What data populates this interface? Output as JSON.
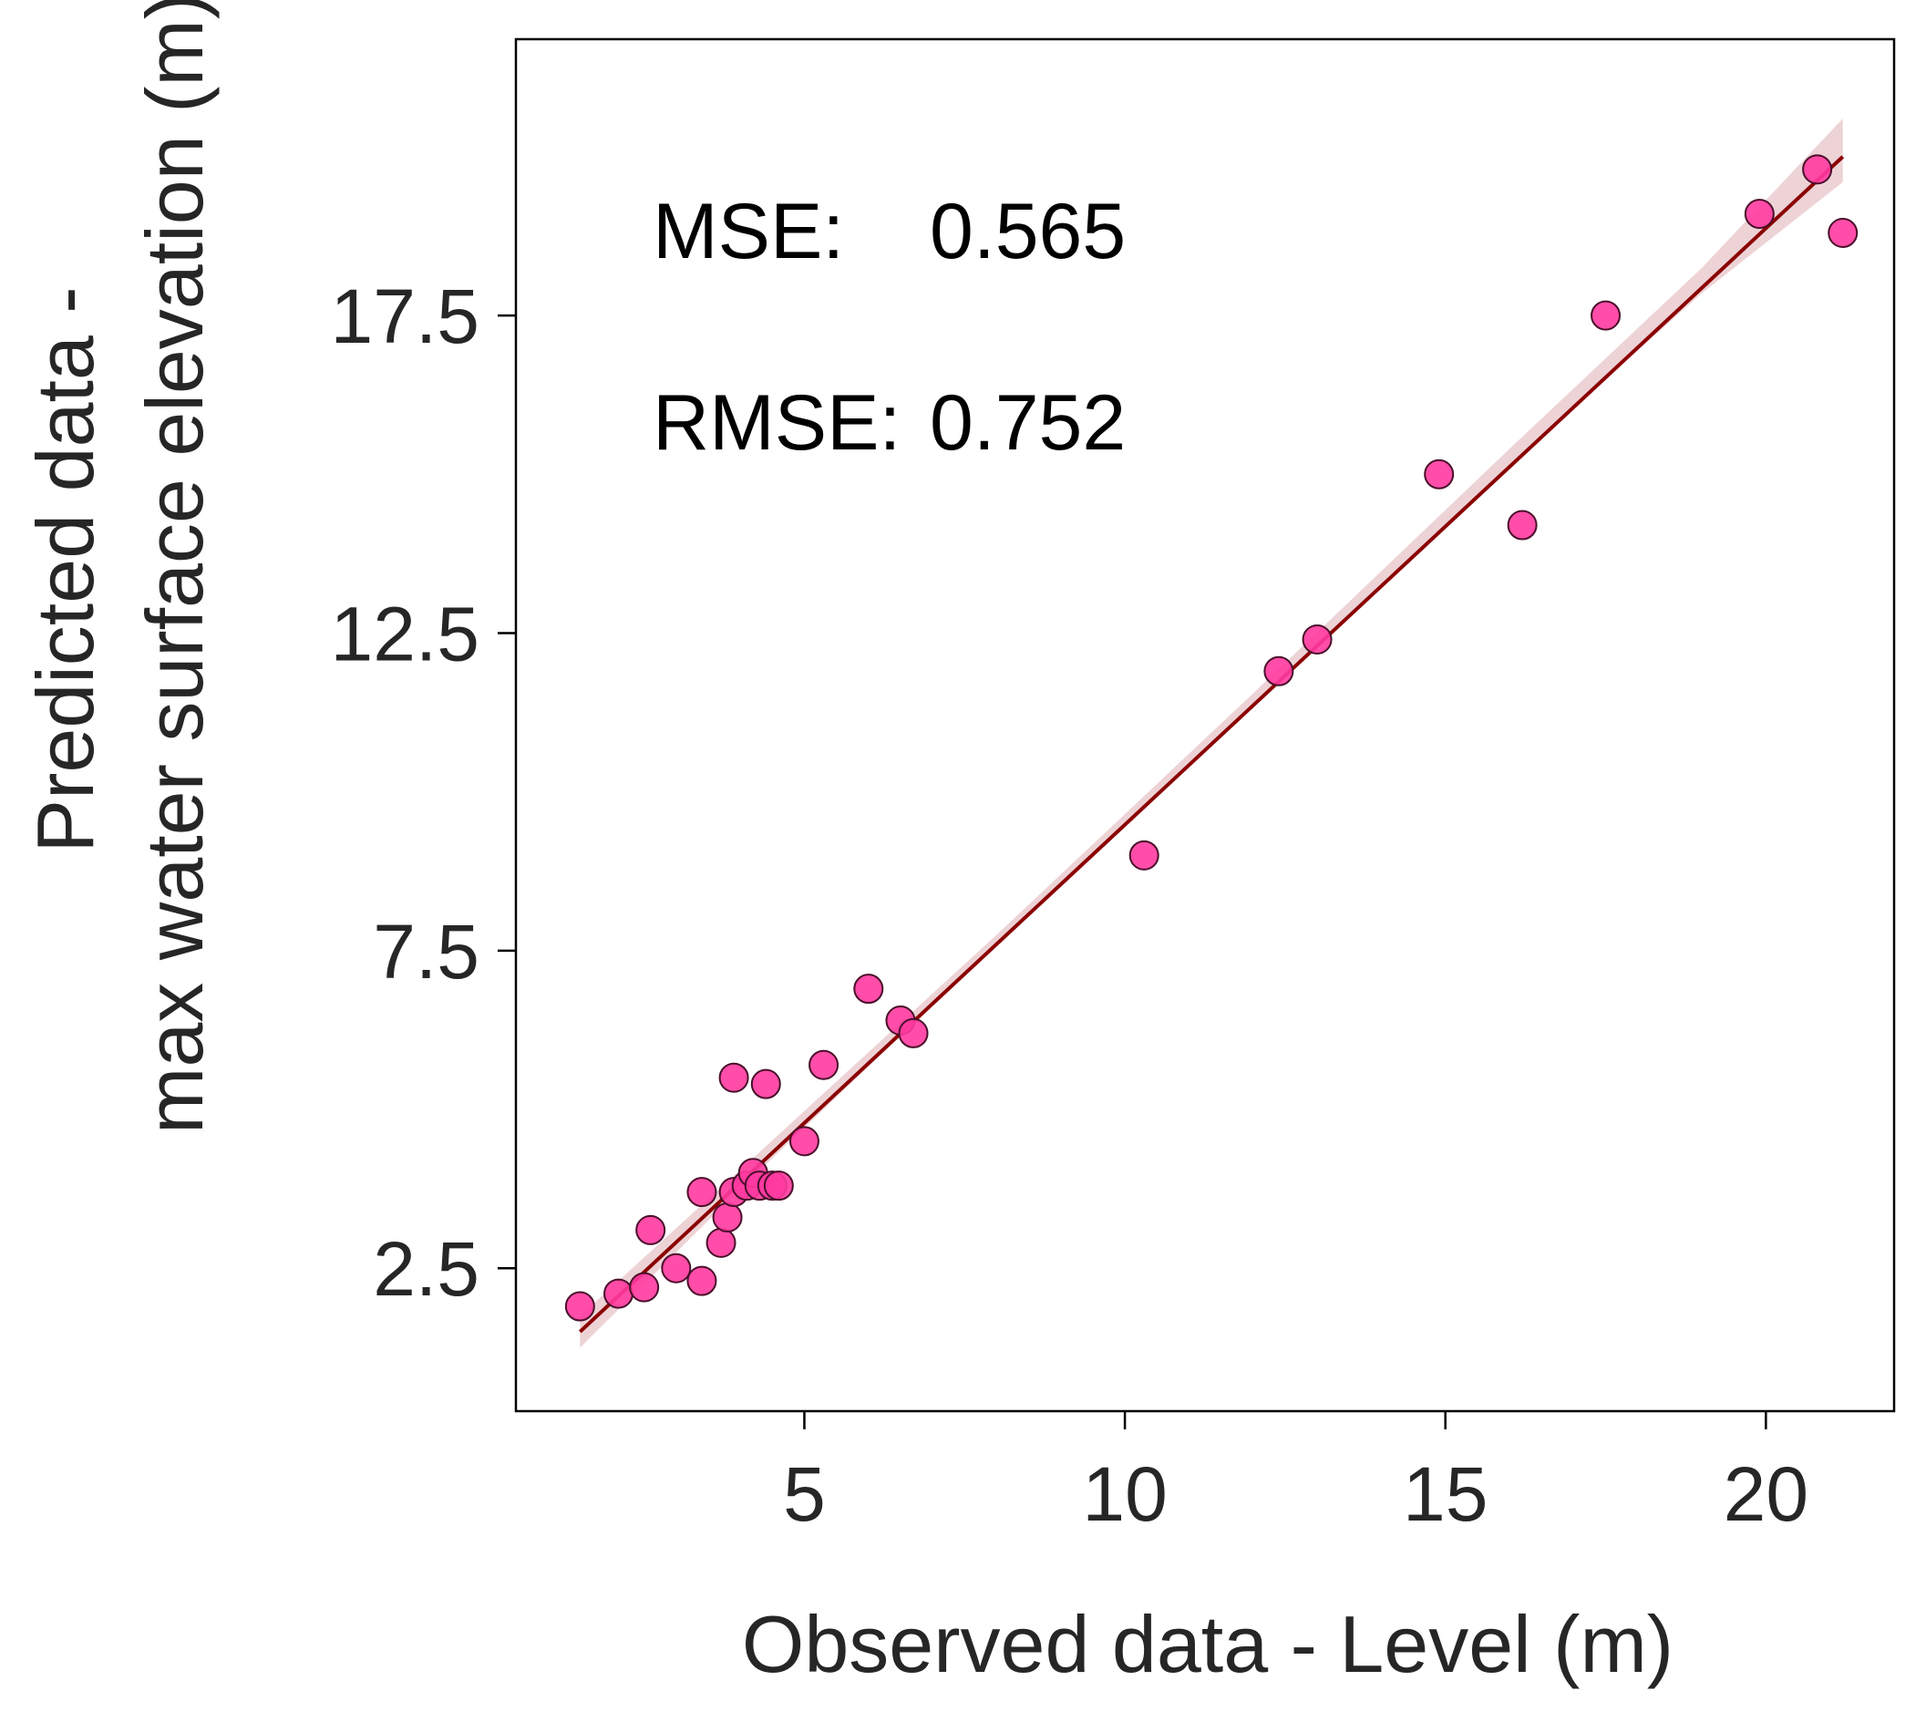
{
  "chart_data": {
    "type": "scatter",
    "xlabel": "Observed data - Level (m)",
    "ylabel_lines": [
      "Predicted data -",
      "max water surface elevation (m)"
    ],
    "xlim": [
      0.5,
      22.0
    ],
    "ylim": [
      0.25,
      21.85
    ],
    "xticks": [
      5,
      10,
      15,
      20
    ],
    "yticks": [
      2.5,
      7.5,
      12.5,
      17.5
    ],
    "xtick_labels": [
      "5",
      "10",
      "15",
      "20"
    ],
    "ytick_labels": [
      "2.5",
      "7.5",
      "12.5",
      "17.5"
    ],
    "grid": false,
    "annotations": [
      {
        "label": "MSE:",
        "value": "0.565"
      },
      {
        "label": "RMSE:",
        "value": "0.752"
      }
    ],
    "points": [
      [
        1.5,
        1.9
      ],
      [
        2.1,
        2.1
      ],
      [
        2.5,
        2.2
      ],
      [
        2.6,
        3.1
      ],
      [
        3.0,
        2.5
      ],
      [
        3.4,
        2.3
      ],
      [
        3.4,
        3.7
      ],
      [
        3.7,
        2.9
      ],
      [
        3.8,
        3.3
      ],
      [
        3.9,
        3.7
      ],
      [
        3.9,
        5.5
      ],
      [
        4.1,
        3.8
      ],
      [
        4.2,
        4.0
      ],
      [
        4.3,
        3.8
      ],
      [
        4.4,
        5.4
      ],
      [
        4.5,
        3.8
      ],
      [
        4.6,
        3.8
      ],
      [
        5.0,
        4.5
      ],
      [
        5.3,
        5.7
      ],
      [
        6.0,
        6.9
      ],
      [
        6.5,
        6.4
      ],
      [
        6.7,
        6.2
      ],
      [
        10.3,
        9.0
      ],
      [
        12.4,
        11.9
      ],
      [
        13.0,
        12.4
      ],
      [
        14.9,
        15.0
      ],
      [
        16.2,
        14.2
      ],
      [
        17.5,
        17.5
      ],
      [
        19.9,
        19.1
      ],
      [
        20.8,
        19.8
      ],
      [
        21.2,
        18.8
      ]
    ],
    "regression": {
      "x": [
        1.5,
        21.2
      ],
      "y": [
        1.5,
        20.0
      ]
    },
    "confidence_band": {
      "x": [
        1.5,
        4.0,
        8.0,
        12.0,
        16.0,
        19.0,
        21.2
      ],
      "lower": [
        1.25,
        3.75,
        7.6,
        11.4,
        15.15,
        17.85,
        19.6
      ],
      "upper": [
        1.75,
        4.05,
        7.75,
        11.55,
        15.4,
        18.25,
        20.6
      ]
    }
  },
  "colors": {
    "point_fill": "#ff3aa0",
    "point_edge": "#4a0f2a",
    "line": "#8b0000",
    "band": "#e8c8cc",
    "axis": "#000000"
  }
}
